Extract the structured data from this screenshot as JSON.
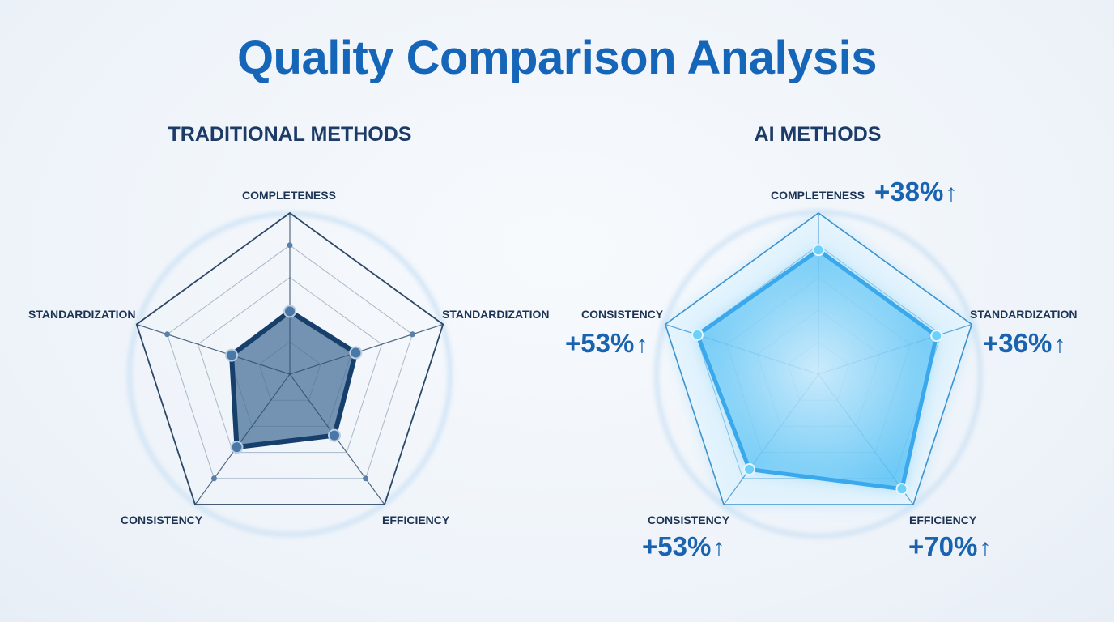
{
  "title": "Quality Comparison Analysis",
  "panels": {
    "traditional": {
      "heading": "TRADITIONAL METHODS",
      "labels": {
        "completeness": "COMPLETENESS",
        "standardization_right": "STANDARDIZATION",
        "efficiency": "EFFICIENCY",
        "consistency": "CONSISTENCY",
        "standardization_left": "STANDARDIZATION"
      }
    },
    "ai": {
      "heading": "AI METHODS",
      "labels": {
        "completeness": "COMPLETENESS",
        "standardization": "STANDARDIZATION",
        "efficiency": "EFFICIENCY",
        "consistency_bottom": "CONSISTENCY",
        "consistency_left": "CONSISTENCY"
      },
      "gains": {
        "completeness": "+38%",
        "standardization": "+36%",
        "efficiency": "+70%",
        "consistency_bottom": "+53%",
        "consistency_left": "+53%",
        "arrow": "↑"
      }
    }
  },
  "colors": {
    "title": "#1565b8",
    "traditional_fill": "#4a7199",
    "traditional_line": "#173f6b",
    "ai_fill": "#5cc3f5",
    "ai_line": "#3aa8ec",
    "grid": "#2a4a6e"
  },
  "chart_data": [
    {
      "type": "radar",
      "title": "TRADITIONAL METHODS",
      "axes": [
        "COMPLETENESS",
        "STANDARDIZATION",
        "EFFICIENCY",
        "CONSISTENCY",
        "STANDARDIZATION"
      ],
      "values": [
        0.39,
        0.43,
        0.47,
        0.56,
        0.38
      ],
      "range": [
        0,
        1
      ],
      "rings": 5
    },
    {
      "type": "radar",
      "title": "AI METHODS",
      "axes": [
        "COMPLETENESS",
        "STANDARDIZATION",
        "EFFICIENCY",
        "CONSISTENCY",
        "CONSISTENCY"
      ],
      "values": [
        0.77,
        0.77,
        0.88,
        0.73,
        0.79
      ],
      "annotations": [
        "+38%",
        "+36%",
        "+70%",
        "+53%",
        "+53%"
      ],
      "range": [
        0,
        1
      ],
      "rings": 5
    }
  ]
}
